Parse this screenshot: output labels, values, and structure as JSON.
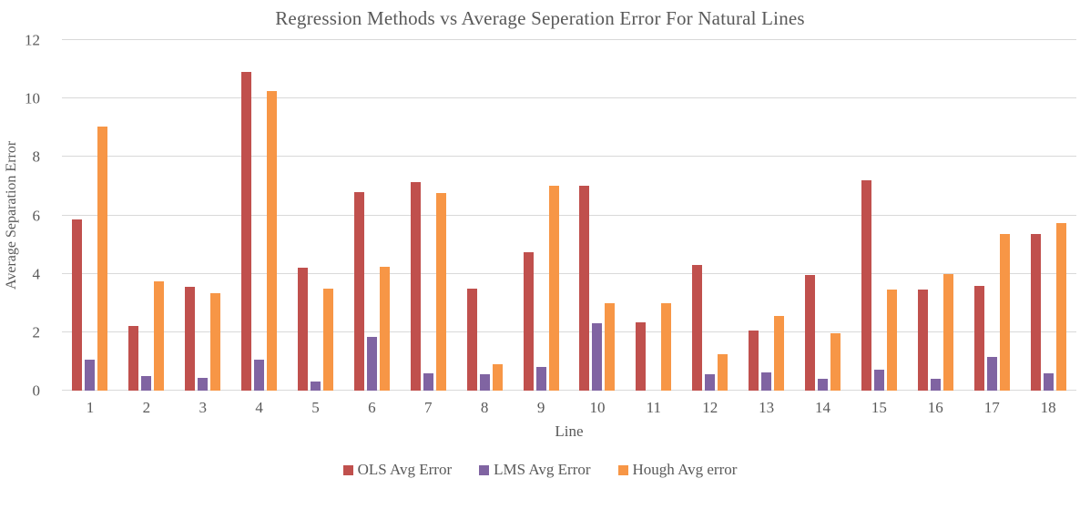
{
  "chart_data": {
    "type": "bar",
    "title": "Regression Methods vs Average Seperation Error For Natural Lines",
    "xlabel": "Line",
    "ylabel": "Average Separation Error",
    "categories": [
      "1",
      "2",
      "3",
      "4",
      "5",
      "6",
      "7",
      "8",
      "9",
      "10",
      "11",
      "12",
      "13",
      "14",
      "15",
      "16",
      "17",
      "18"
    ],
    "series": [
      {
        "name": "OLS Avg Error",
        "color": "#C0504D",
        "values": [
          5.85,
          2.2,
          3.55,
          10.9,
          4.2,
          6.8,
          7.15,
          3.5,
          4.75,
          7.0,
          2.35,
          4.3,
          2.05,
          3.95,
          7.2,
          3.45,
          3.6,
          5.35
        ]
      },
      {
        "name": "LMS Avg Error",
        "color": "#8064A2",
        "values": [
          1.05,
          0.5,
          0.45,
          1.05,
          0.3,
          1.85,
          0.6,
          0.55,
          0.8,
          2.3,
          0,
          0.55,
          0.62,
          0.4,
          0.72,
          0.4,
          1.15,
          0.58
        ]
      },
      {
        "name": "Hough Avg error",
        "color": "#F79646",
        "values": [
          9.05,
          3.75,
          3.35,
          10.25,
          3.5,
          4.25,
          6.75,
          0.9,
          7.0,
          3.0,
          3.0,
          1.25,
          2.55,
          1.95,
          3.45,
          4.0,
          5.35,
          5.75
        ]
      }
    ],
    "ylim": [
      0,
      12
    ],
    "yticks": [
      0,
      2,
      4,
      6,
      8,
      10,
      12
    ],
    "grid": true,
    "legend_position": "bottom",
    "colors": {
      "gridline": "#d9d9d9",
      "text": "#595959",
      "background": "#ffffff"
    }
  }
}
